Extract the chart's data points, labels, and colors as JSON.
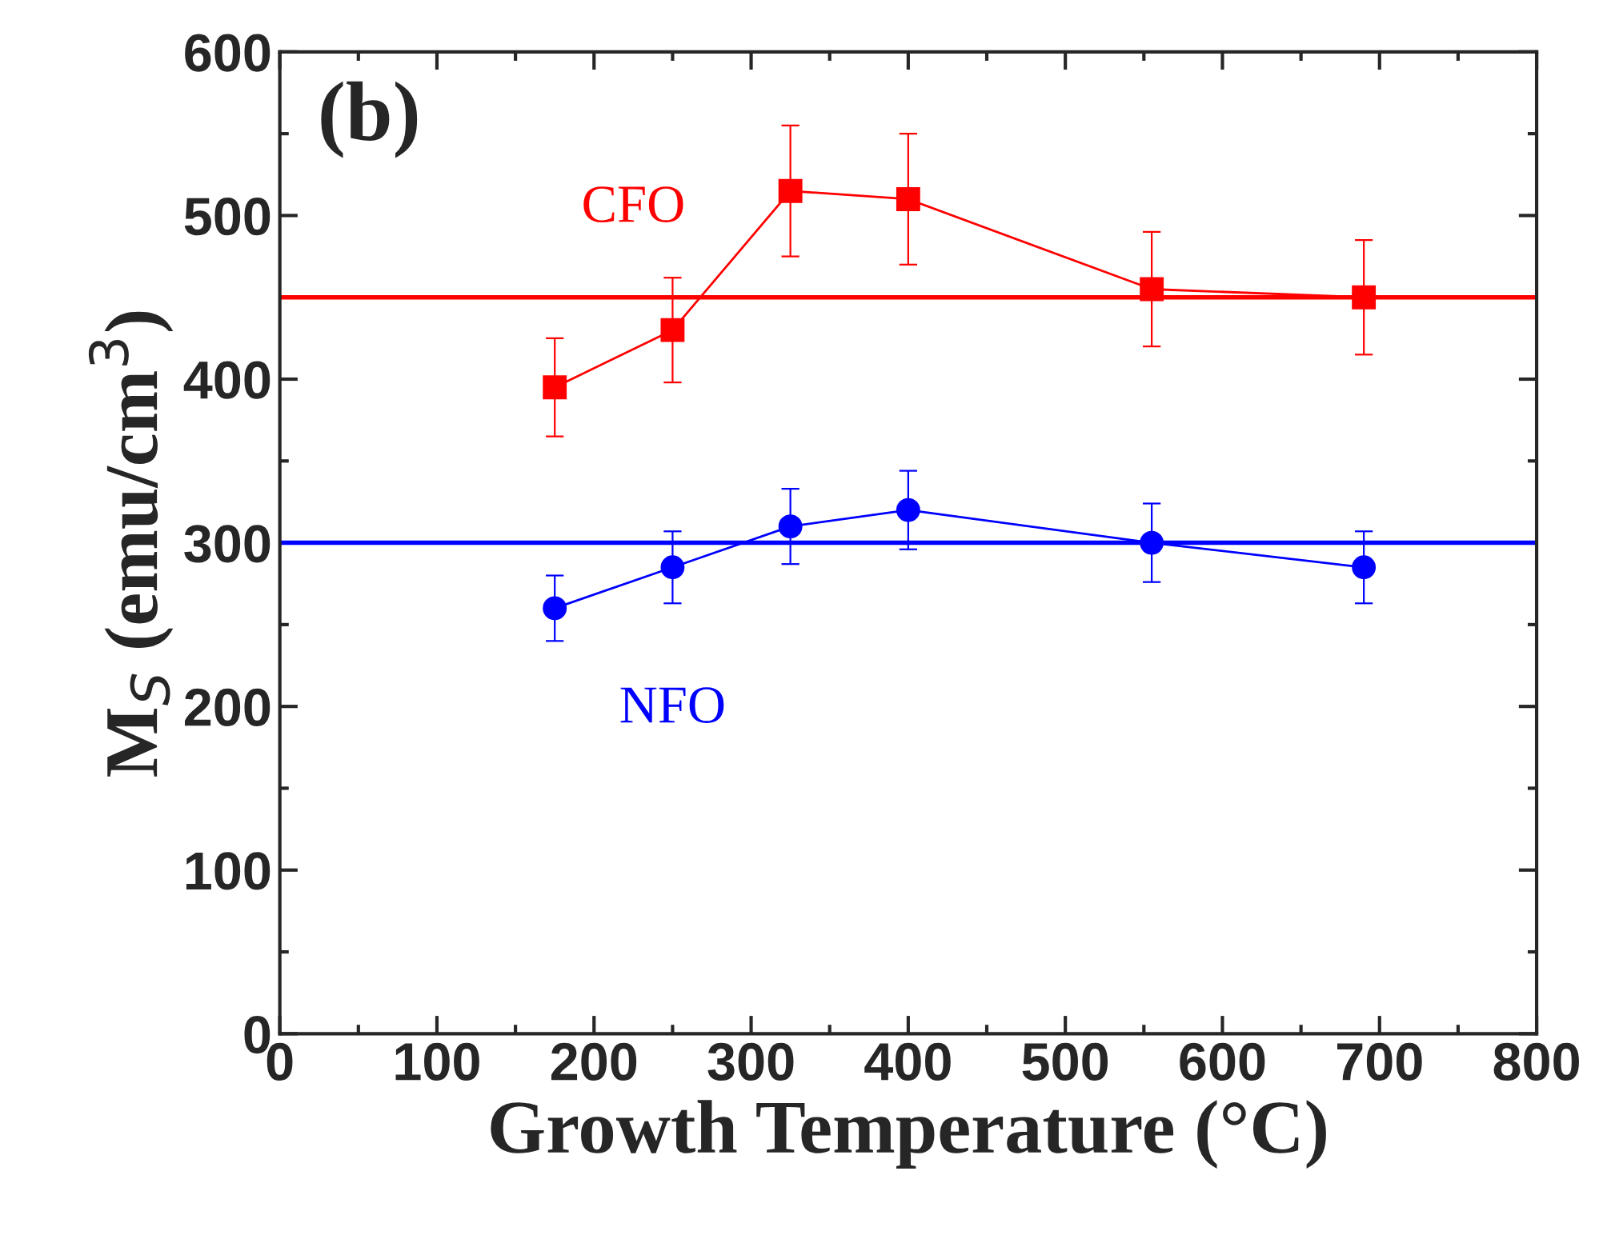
{
  "chart_data": {
    "type": "line",
    "xlabel": "Growth Temperature (°C)",
    "ylabel": "M$_{S}$ (emu/cm$^{3}$)",
    "xlim": [
      0,
      800
    ],
    "xticks": [
      0,
      100,
      200,
      300,
      400,
      500,
      600,
      700,
      800
    ],
    "ylim": [
      0,
      600
    ],
    "yticks": [
      0,
      100,
      200,
      300,
      400,
      500,
      600
    ],
    "x": [
      175,
      250,
      325,
      400,
      555,
      690
    ],
    "series": [
      {
        "name": "CFO",
        "color": "#ff0000",
        "marker": "square",
        "values": [
          395,
          430,
          515,
          510,
          455,
          450
        ],
        "errors": [
          30,
          32,
          40,
          40,
          35,
          35
        ]
      },
      {
        "name": "NFO",
        "color": "#0000ff",
        "marker": "circle",
        "values": [
          260,
          285,
          310,
          320,
          300,
          285
        ],
        "errors": [
          20,
          22,
          23,
          24,
          24,
          22
        ]
      }
    ],
    "ref_lines": [
      {
        "axis": "y",
        "value": 450,
        "color": "#ff0000"
      },
      {
        "axis": "y",
        "value": 300,
        "color": "#0000ff"
      }
    ],
    "annotations": [
      "(b)"
    ],
    "legend": false,
    "grid": false,
    "line_style": "solid"
  }
}
